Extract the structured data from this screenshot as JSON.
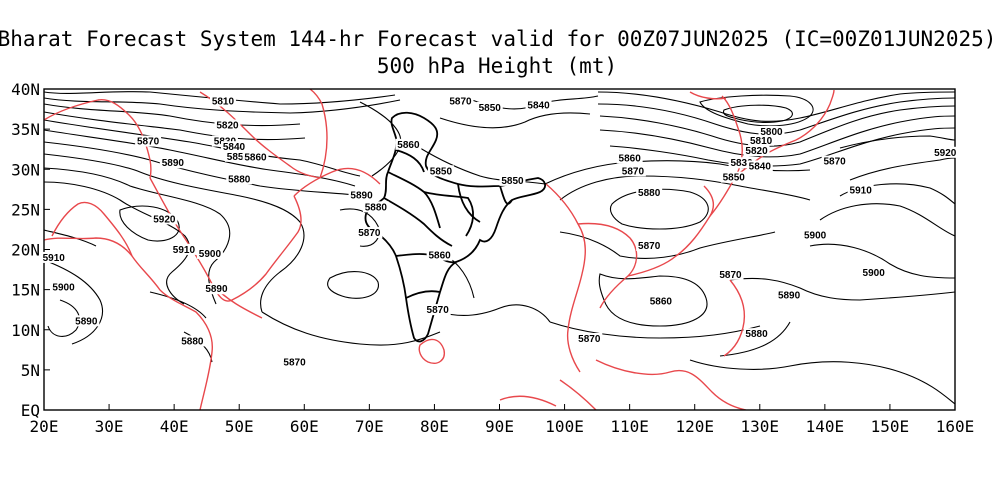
{
  "title_line1": "Bharat Forecast System 144-hr Forecast valid for 00Z07JUN2025 (IC=00Z01JUN2025)",
  "title_line2": "500 hPa Height (mt)",
  "x_ticks": [
    "20E",
    "30E",
    "40E",
    "50E",
    "60E",
    "70E",
    "80E",
    "90E",
    "100E",
    "110E",
    "120E",
    "130E",
    "140E",
    "150E",
    "160E"
  ],
  "y_ticks": [
    "40N",
    "35N",
    "30N",
    "25N",
    "20N",
    "15N",
    "10N",
    "5N",
    "EQ"
  ],
  "lon_range": [
    20,
    160
  ],
  "lat_range": [
    0,
    40
  ],
  "colors": {
    "contour": "#000000",
    "coastline": "#e8484c",
    "india_boundary": "#000000"
  },
  "contour_labels": [
    {
      "text": "5810",
      "lon": 47.5,
      "lat": 38.2
    },
    {
      "text": "5820",
      "lon": 48.2,
      "lat": 35.2
    },
    {
      "text": "5830",
      "lon": 47.8,
      "lat": 33.2
    },
    {
      "text": "5840",
      "lon": 49.2,
      "lat": 32.5
    },
    {
      "text": "5850",
      "lon": 49.8,
      "lat": 31.3
    },
    {
      "text": "5860",
      "lon": 52.5,
      "lat": 31.2
    },
    {
      "text": "5870",
      "lon": 36.0,
      "lat": 33.2
    },
    {
      "text": "5890",
      "lon": 39.8,
      "lat": 30.5
    },
    {
      "text": "5880",
      "lon": 50.0,
      "lat": 28.5
    },
    {
      "text": "5920",
      "lon": 38.5,
      "lat": 23.5
    },
    {
      "text": "5910",
      "lon": 41.5,
      "lat": 19.7
    },
    {
      "text": "5900",
      "lon": 45.5,
      "lat": 19.2
    },
    {
      "text": "5910",
      "lon": 21.5,
      "lat": 18.7
    },
    {
      "text": "5900",
      "lon": 23.0,
      "lat": 15.0
    },
    {
      "text": "5890",
      "lon": 46.5,
      "lat": 14.8
    },
    {
      "text": "5890",
      "lon": 26.5,
      "lat": 10.8
    },
    {
      "text": "5880",
      "lon": 42.8,
      "lat": 8.3
    },
    {
      "text": "5870",
      "lon": 58.5,
      "lat": 5.7
    },
    {
      "text": "5870",
      "lon": 84.0,
      "lat": 38.2
    },
    {
      "text": "5850",
      "lon": 88.5,
      "lat": 37.4
    },
    {
      "text": "5840",
      "lon": 96.0,
      "lat": 37.7
    },
    {
      "text": "5860",
      "lon": 76.0,
      "lat": 32.8
    },
    {
      "text": "5850",
      "lon": 81.0,
      "lat": 29.5
    },
    {
      "text": "5850",
      "lon": 92.0,
      "lat": 28.3
    },
    {
      "text": "5890",
      "lon": 68.8,
      "lat": 26.5
    },
    {
      "text": "5880",
      "lon": 71.0,
      "lat": 25.0
    },
    {
      "text": "5870",
      "lon": 70.0,
      "lat": 21.8
    },
    {
      "text": "5860",
      "lon": 80.8,
      "lat": 19.0
    },
    {
      "text": "5870",
      "lon": 80.5,
      "lat": 12.2
    },
    {
      "text": "5860",
      "lon": 110.0,
      "lat": 31.1
    },
    {
      "text": "5870",
      "lon": 110.5,
      "lat": 29.5
    },
    {
      "text": "5880",
      "lon": 113.0,
      "lat": 26.8
    },
    {
      "text": "5870",
      "lon": 113.0,
      "lat": 20.2
    },
    {
      "text": "5860",
      "lon": 114.8,
      "lat": 13.3
    },
    {
      "text": "5870",
      "lon": 103.8,
      "lat": 8.6
    },
    {
      "text": "5870",
      "lon": 125.5,
      "lat": 16.6
    },
    {
      "text": "5850",
      "lon": 126.0,
      "lat": 28.7
    },
    {
      "text": "5830",
      "lon": 127.2,
      "lat": 30.5
    },
    {
      "text": "5840",
      "lon": 130.0,
      "lat": 30.1
    },
    {
      "text": "5820",
      "lon": 129.5,
      "lat": 32.0
    },
    {
      "text": "5810",
      "lon": 130.2,
      "lat": 33.3
    },
    {
      "text": "5800",
      "lon": 131.8,
      "lat": 34.4
    },
    {
      "text": "5870",
      "lon": 141.5,
      "lat": 30.7
    },
    {
      "text": "5920",
      "lon": 158.5,
      "lat": 31.8
    },
    {
      "text": "5910",
      "lon": 145.5,
      "lat": 27.1
    },
    {
      "text": "5900",
      "lon": 138.5,
      "lat": 21.5
    },
    {
      "text": "5900",
      "lon": 147.5,
      "lat": 16.8
    },
    {
      "text": "5890",
      "lon": 134.5,
      "lat": 14.0
    },
    {
      "text": "5880",
      "lon": 129.5,
      "lat": 9.2
    }
  ]
}
